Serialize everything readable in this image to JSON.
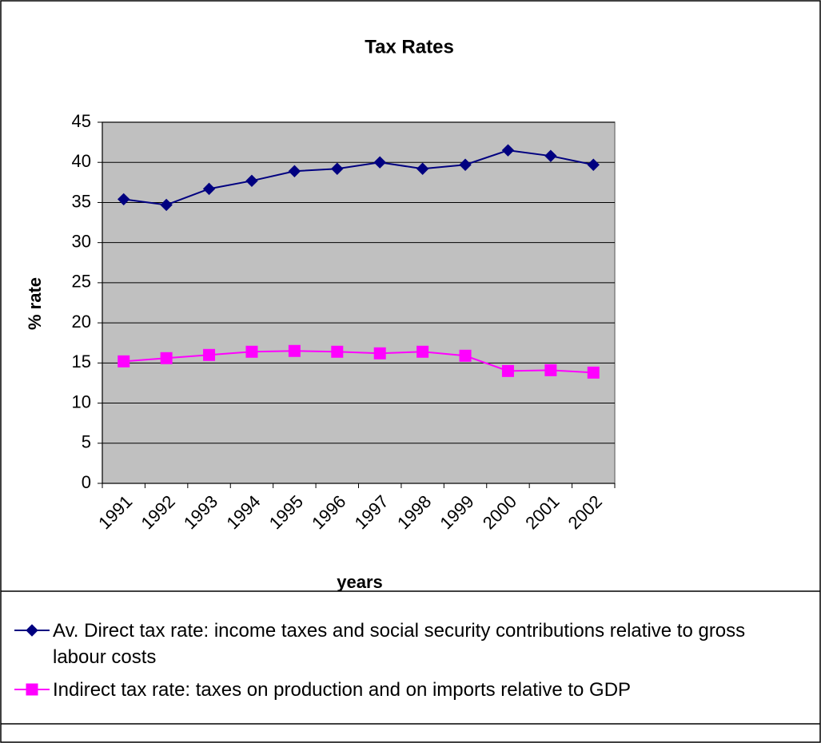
{
  "chart_data": {
    "type": "line",
    "title": "Tax Rates",
    "x_label": "years",
    "y_label": "% rate",
    "categories": [
      "1991",
      "1992",
      "1993",
      "1994",
      "1995",
      "1996",
      "1997",
      "1998",
      "1999",
      "2000",
      "2001",
      "2002"
    ],
    "series": [
      {
        "name": "Av. Direct tax rate: income taxes and social security contributions relative to gross labour costs",
        "color": "#000080",
        "marker": "diamond",
        "values": [
          35.4,
          34.7,
          36.7,
          37.7,
          38.9,
          39.2,
          40.0,
          39.2,
          39.7,
          41.5,
          40.8,
          39.7
        ]
      },
      {
        "name": "Indirect tax rate: taxes on production and on imports relative to GDP",
        "color": "#ff00ff",
        "marker": "square",
        "values": [
          15.2,
          15.6,
          16.0,
          16.4,
          16.5,
          16.4,
          16.2,
          16.4,
          15.9,
          14.0,
          14.1,
          13.8
        ]
      }
    ],
    "ylim": [
      0,
      45
    ],
    "yticks": [
      0,
      5,
      10,
      15,
      20,
      25,
      30,
      35,
      40,
      45
    ],
    "grid": true,
    "plot_background": "#c0c0c0",
    "legend_position": "bottom"
  }
}
